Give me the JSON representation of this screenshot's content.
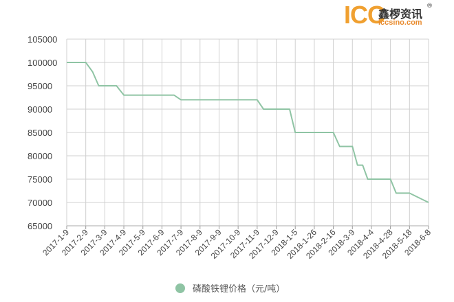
{
  "logo": {
    "mark": "ICC",
    "mark_color": "#f0a030",
    "name_cn": "鑫椤资讯",
    "registered": "®",
    "site": "iccsino.com"
  },
  "chart_data": {
    "type": "line",
    "title": "",
    "xlabel": "",
    "ylabel": "",
    "ylim": [
      65000,
      105000
    ],
    "yticks": [
      65000,
      70000,
      75000,
      80000,
      85000,
      90000,
      95000,
      100000,
      105000
    ],
    "grid": true,
    "legend_position": "bottom-center",
    "x_tick_labels": [
      "2017-1-9",
      "2017-2-9",
      "2017-3-9",
      "2017-4-9",
      "2017-5-9",
      "2017-6-9",
      "2017-7-9",
      "2017-8-9",
      "2017-9-9",
      "2017-10-9",
      "2017-11-9",
      "2017-12-9",
      "2018-1-5",
      "2018-1-26",
      "2018-2-16",
      "2018-3-9",
      "2018-4-4",
      "2018-4-28",
      "2018-5-18",
      "2018-6-8"
    ],
    "series": [
      {
        "name": "磷酸铁锂价格（元/吨）",
        "color": "#8fc4a4",
        "x": [
          "2017-1-9",
          "2017-2-9",
          "2017-2-19",
          "2017-2-28",
          "2017-3-9",
          "2017-3-28",
          "2017-4-9",
          "2017-4-19",
          "2017-5-9",
          "2017-6-9",
          "2017-6-28",
          "2017-7-9",
          "2017-7-19",
          "2017-8-9",
          "2017-9-9",
          "2017-10-9",
          "2017-11-9",
          "2017-11-19",
          "2017-12-9",
          "2017-12-28",
          "2018-1-5",
          "2018-1-26",
          "2018-2-16",
          "2018-2-23",
          "2018-3-9",
          "2018-3-16",
          "2018-3-23",
          "2018-3-30",
          "2018-4-4",
          "2018-4-28",
          "2018-5-4",
          "2018-5-10",
          "2018-5-18",
          "2018-6-8"
        ],
        "values": [
          100000,
          100000,
          98000,
          95000,
          95000,
          95000,
          93000,
          93000,
          93000,
          93000,
          93000,
          92000,
          92000,
          92000,
          92000,
          92000,
          92000,
          90000,
          90000,
          90000,
          85000,
          85000,
          85000,
          82000,
          82000,
          78000,
          78000,
          75000,
          75000,
          75000,
          72000,
          72000,
          72000,
          70000
        ]
      }
    ]
  }
}
